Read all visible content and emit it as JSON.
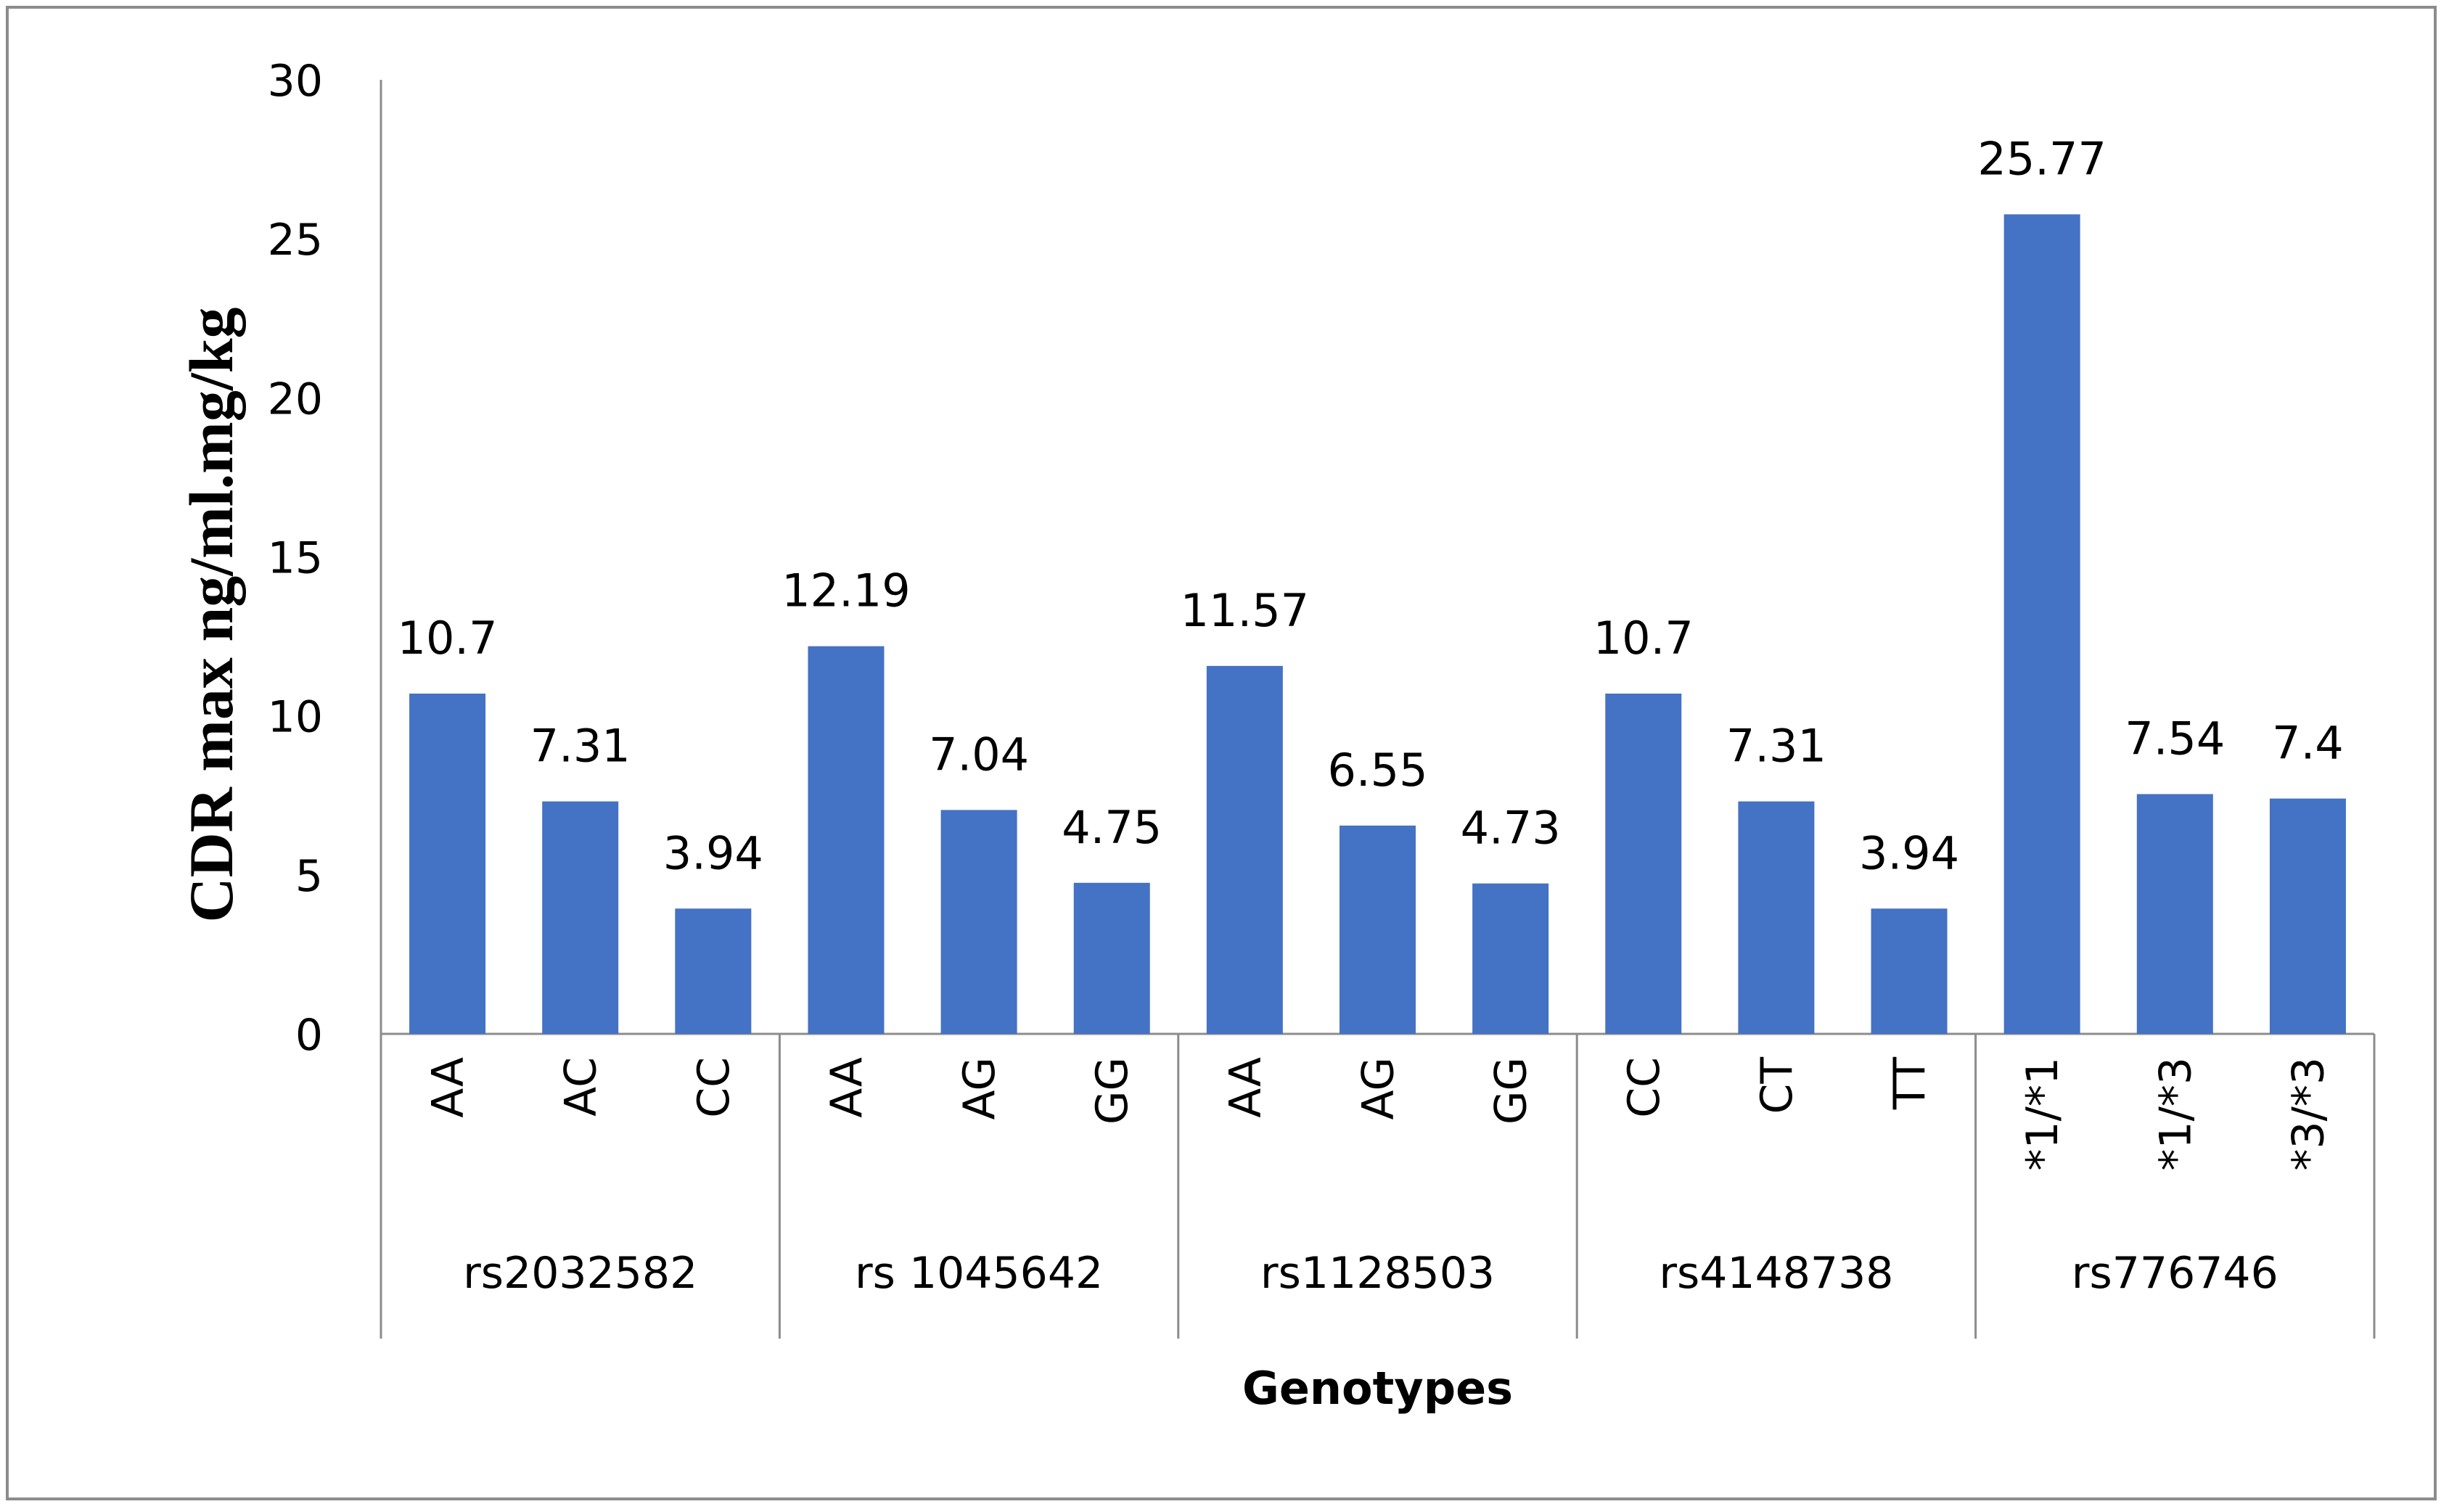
{
  "chart_data": {
    "type": "bar",
    "title": "",
    "xlabel": "Genotypes",
    "ylabel": "CDR max ng/ml.mg/kg",
    "ylim": [
      0,
      30
    ],
    "yticks": [
      0,
      5,
      10,
      15,
      20,
      25,
      30
    ],
    "grid": false,
    "legend": "none",
    "bar_color": "#4472c4",
    "groups": [
      {
        "name": "rs2032582",
        "categories": [
          "AA",
          "AC",
          "CC"
        ],
        "values": [
          10.7,
          7.31,
          3.94
        ],
        "labels": [
          "10.7",
          "7.31",
          "3.94"
        ]
      },
      {
        "name": "rs 1045642",
        "categories": [
          "AA",
          "AG",
          "GG"
        ],
        "values": [
          12.19,
          7.04,
          4.75
        ],
        "labels": [
          "12.19",
          "7.04",
          "4.75"
        ]
      },
      {
        "name": "rs1128503",
        "categories": [
          "AA",
          "AG",
          "GG"
        ],
        "values": [
          11.57,
          6.55,
          4.73
        ],
        "labels": [
          "11.57",
          "6.55",
          "4.73"
        ]
      },
      {
        "name": "rs4148738",
        "categories": [
          "CC",
          "CT",
          "TT"
        ],
        "values": [
          10.7,
          7.31,
          3.94
        ],
        "labels": [
          "10.7",
          "7.31",
          "3.94"
        ]
      },
      {
        "name": "rs776746",
        "categories": [
          "*1/*1",
          "*1/*3",
          "*3/*3"
        ],
        "values": [
          25.77,
          7.54,
          7.4
        ],
        "labels": [
          "25.77",
          "7.54",
          "7.4"
        ]
      }
    ]
  }
}
